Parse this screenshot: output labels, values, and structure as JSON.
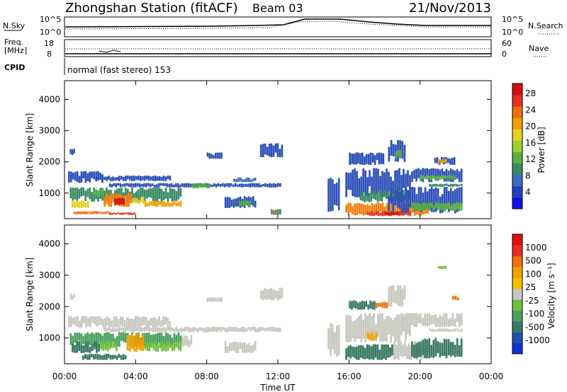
{
  "header": {
    "station": "Zhongshan Station (fitACF)",
    "beam": "Beam 03",
    "date": "21/Nov/2013"
  },
  "top_panels": {
    "nsky_label": "N.Sky",
    "nsky_ticks": [
      "10^5",
      "10^0"
    ],
    "nsearch_label": "N.Search",
    "freq_label_1": "Freq.",
    "freq_label_2": "[MHz]",
    "freq_ticks": [
      "18",
      "8"
    ],
    "nave_label": "Nave",
    "nave_ticks": [
      "60",
      "0"
    ],
    "cpid_label": "CPID",
    "cpid_text": "normal (fast stereo) 153"
  },
  "chart_data": [
    {
      "type": "heatmap",
      "panel": "power",
      "ylabel": "Slant Range [km]",
      "xlabel": "",
      "x_ticks": [
        "00:00",
        "04:00",
        "08:00",
        "12:00",
        "16:00",
        "20:00",
        "00:00"
      ],
      "y_ticks": [
        1000,
        2000,
        3000,
        4000
      ],
      "xlim": [
        0,
        24
      ],
      "ylim": [
        180,
        4600
      ],
      "colorbar": {
        "label": "Power [dB]",
        "ticks": [
          "4",
          "8",
          "12",
          "16",
          "20",
          "24",
          "28"
        ],
        "colors": [
          "#1010e8",
          "#2040c0",
          "#3a6ec0",
          "#3a8a64",
          "#58b040",
          "#a0d030",
          "#e8d020",
          "#f0a000",
          "#f07010",
          "#e83020",
          "#d01010"
        ]
      },
      "regions": [
        {
          "t0": 0.2,
          "t1": 2.2,
          "r0": 1320,
          "r1": 1700,
          "c": "#2e50b8"
        },
        {
          "t0": 2.2,
          "t1": 6.0,
          "r0": 1380,
          "r1": 1560,
          "c": "#2e50b8"
        },
        {
          "t0": 2.5,
          "t1": 12.2,
          "r0": 1180,
          "r1": 1320,
          "c": "#2e50b8"
        },
        {
          "t0": 9.5,
          "t1": 10.8,
          "r0": 1350,
          "r1": 1500,
          "c": "#3b6fbf"
        },
        {
          "t0": 0.3,
          "t1": 6.6,
          "r0": 720,
          "r1": 1180,
          "c": "#3a8a64"
        },
        {
          "t0": 0.4,
          "t1": 1.4,
          "r0": 520,
          "r1": 760,
          "c": "#e8d020"
        },
        {
          "t0": 1.6,
          "t1": 2.2,
          "r0": 900,
          "r1": 1120,
          "c": "#58b040"
        },
        {
          "t0": 2.2,
          "t1": 3.8,
          "r0": 560,
          "r1": 1000,
          "c": "#f08010"
        },
        {
          "t0": 3.8,
          "t1": 4.5,
          "r0": 650,
          "r1": 860,
          "c": "#e8d020"
        },
        {
          "t0": 4.5,
          "t1": 6.6,
          "r0": 560,
          "r1": 760,
          "c": "#f0a000"
        },
        {
          "t0": 2.8,
          "t1": 3.4,
          "r0": 620,
          "r1": 850,
          "c": "#d01010"
        },
        {
          "t0": 0.5,
          "t1": 2.5,
          "r0": 320,
          "r1": 420,
          "c": "#f07010"
        },
        {
          "t0": 2.5,
          "t1": 4.0,
          "r0": 300,
          "r1": 380,
          "c": "#e83020"
        },
        {
          "t0": 9.0,
          "t1": 10.8,
          "r0": 520,
          "r1": 900,
          "c": "#2e50b8"
        },
        {
          "t0": 9.8,
          "t1": 10.5,
          "r0": 560,
          "r1": 780,
          "c": "#58b040"
        },
        {
          "t0": 7.2,
          "t1": 8.2,
          "r0": 1150,
          "r1": 1320,
          "c": "#58b040"
        },
        {
          "t0": 11.6,
          "t1": 12.2,
          "r0": 300,
          "r1": 520,
          "c": "#3a8a64"
        },
        {
          "t0": 11.6,
          "t1": 12.0,
          "r0": 360,
          "r1": 420,
          "c": "#f07010"
        },
        {
          "t0": 8.0,
          "t1": 8.9,
          "r0": 2100,
          "r1": 2300,
          "c": "#2e50b8"
        },
        {
          "t0": 11.0,
          "t1": 12.3,
          "r0": 2150,
          "r1": 2600,
          "c": "#2e50b8"
        },
        {
          "t0": 0.3,
          "t1": 0.6,
          "r0": 2220,
          "r1": 2420,
          "c": "#2e50b8"
        },
        {
          "t0": 15.8,
          "t1": 19.5,
          "r0": 860,
          "r1": 1800,
          "c": "#2e50b8"
        },
        {
          "t0": 16.6,
          "t1": 19.5,
          "r0": 700,
          "r1": 1100,
          "c": "#3a8a64"
        },
        {
          "t0": 15.8,
          "t1": 20.5,
          "r0": 280,
          "r1": 700,
          "c": "#f08010"
        },
        {
          "t0": 17.0,
          "t1": 19.5,
          "r0": 260,
          "r1": 420,
          "c": "#e83020"
        },
        {
          "t0": 18.0,
          "t1": 18.8,
          "r0": 300,
          "r1": 380,
          "c": "#d01010"
        },
        {
          "t0": 18.2,
          "t1": 22.4,
          "r0": 350,
          "r1": 1200,
          "c": "#2e50b8"
        },
        {
          "t0": 19.5,
          "t1": 22.4,
          "r0": 430,
          "r1": 700,
          "c": "#58b040"
        },
        {
          "t0": 19.5,
          "t1": 22.4,
          "r0": 1350,
          "r1": 1800,
          "c": "#2e50b8"
        },
        {
          "t0": 20.0,
          "t1": 22.0,
          "r0": 1420,
          "r1": 1580,
          "c": "#58b040"
        },
        {
          "t0": 20.5,
          "t1": 22.4,
          "r0": 1200,
          "r1": 1300,
          "c": "#3a8a64"
        },
        {
          "t0": 18.2,
          "t1": 19.2,
          "r0": 2000,
          "r1": 2700,
          "c": "#2e50b8"
        },
        {
          "t0": 18.6,
          "t1": 19.0,
          "r0": 2100,
          "r1": 2400,
          "c": "#58b040"
        },
        {
          "t0": 20.8,
          "t1": 22.0,
          "r0": 1900,
          "r1": 2150,
          "c": "#2e50b8"
        },
        {
          "t0": 21.0,
          "t1": 21.5,
          "r0": 1950,
          "r1": 2100,
          "c": "#f0a000"
        },
        {
          "t0": 16.0,
          "t1": 18.0,
          "r0": 1900,
          "r1": 2300,
          "c": "#2e50b8"
        },
        {
          "t0": 14.8,
          "t1": 15.5,
          "r0": 400,
          "r1": 1500,
          "c": "#2e50b8"
        }
      ]
    },
    {
      "type": "heatmap",
      "panel": "velocity",
      "ylabel": "Slant Range [km]",
      "xlabel": "Time UT",
      "x_ticks": [
        "00:00",
        "04:00",
        "08:00",
        "12:00",
        "16:00",
        "20:00",
        "00:00"
      ],
      "y_ticks": [
        1000,
        2000,
        3000,
        4000
      ],
      "xlim": [
        0,
        24
      ],
      "ylim": [
        180,
        4600
      ],
      "colorbar": {
        "label": "Velocity [m s⁻¹]",
        "ticks": [
          "1000",
          "500",
          "100",
          "25",
          "-25",
          "-100",
          "-500",
          "-1000"
        ],
        "colors": [
          "#1030d8",
          "#2050b0",
          "#3a7a64",
          "#4aa060",
          "#70c040",
          "#c8c8c0",
          "#f0c000",
          "#f0a000",
          "#f07010",
          "#e83020",
          "#e01010"
        ]
      },
      "regions": [
        {
          "t0": 0.2,
          "t1": 6.0,
          "r0": 1320,
          "r1": 1700,
          "c": "#c8c8c0"
        },
        {
          "t0": 2.2,
          "t1": 12.2,
          "r0": 1180,
          "r1": 1360,
          "c": "#c8c8c0"
        },
        {
          "t0": 0.3,
          "t1": 6.6,
          "r0": 720,
          "r1": 1180,
          "c": "#4aa060"
        },
        {
          "t0": 0.4,
          "t1": 2.0,
          "r0": 520,
          "r1": 900,
          "c": "#3a7a64"
        },
        {
          "t0": 2.0,
          "t1": 3.0,
          "r0": 560,
          "r1": 900,
          "c": "#70c040"
        },
        {
          "t0": 3.5,
          "t1": 4.5,
          "r0": 560,
          "r1": 1150,
          "c": "#f0a000"
        },
        {
          "t0": 4.5,
          "t1": 6.6,
          "r0": 560,
          "r1": 900,
          "c": "#70c040"
        },
        {
          "t0": 1.0,
          "t1": 3.5,
          "r0": 300,
          "r1": 500,
          "c": "#3a7a64"
        },
        {
          "t0": 6.6,
          "t1": 7.2,
          "r0": 700,
          "r1": 1100,
          "c": "#c8c8c0"
        },
        {
          "t0": 9.0,
          "t1": 10.8,
          "r0": 520,
          "r1": 900,
          "c": "#c8c8c0"
        },
        {
          "t0": 8.0,
          "t1": 8.9,
          "r0": 2150,
          "r1": 2300,
          "c": "#c8c8c0"
        },
        {
          "t0": 11.0,
          "t1": 12.3,
          "r0": 2200,
          "r1": 2600,
          "c": "#c8c8c0"
        },
        {
          "t0": 0.3,
          "t1": 0.6,
          "r0": 2220,
          "r1": 2420,
          "c": "#c8c8c0"
        },
        {
          "t0": 15.8,
          "t1": 19.5,
          "r0": 860,
          "r1": 1800,
          "c": "#c8c8c0"
        },
        {
          "t0": 15.8,
          "t1": 18.5,
          "r0": 300,
          "r1": 800,
          "c": "#3a7a64"
        },
        {
          "t0": 18.5,
          "t1": 20.5,
          "r0": 300,
          "r1": 900,
          "c": "#c8c8c0"
        },
        {
          "t0": 19.5,
          "t1": 22.4,
          "r0": 350,
          "r1": 1000,
          "c": "#3a7a64"
        },
        {
          "t0": 19.5,
          "t1": 22.4,
          "r0": 1350,
          "r1": 1800,
          "c": "#c8c8c0"
        },
        {
          "t0": 20.5,
          "t1": 22.4,
          "r0": 1200,
          "r1": 1300,
          "c": "#c8c8c0"
        },
        {
          "t0": 18.2,
          "t1": 19.2,
          "r0": 2000,
          "r1": 2700,
          "c": "#c8c8c0"
        },
        {
          "t0": 16.0,
          "t1": 17.5,
          "r0": 1900,
          "r1": 2200,
          "c": "#3a7a64"
        },
        {
          "t0": 17.5,
          "t1": 18.2,
          "r0": 1950,
          "r1": 2150,
          "c": "#f07010"
        },
        {
          "t0": 21.8,
          "t1": 22.2,
          "r0": 2200,
          "r1": 2350,
          "c": "#f07010"
        },
        {
          "t0": 14.8,
          "t1": 15.5,
          "r0": 400,
          "r1": 1500,
          "c": "#c8c8c0"
        },
        {
          "t0": 17.0,
          "t1": 17.6,
          "r0": 900,
          "r1": 1200,
          "c": "#f0a000"
        },
        {
          "t0": 21.0,
          "t1": 21.5,
          "r0": 3200,
          "r1": 3300,
          "c": "#70c040"
        }
      ]
    }
  ]
}
